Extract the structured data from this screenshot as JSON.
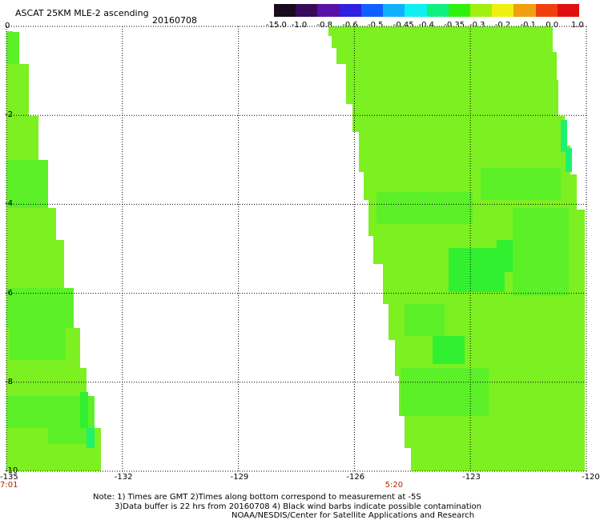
{
  "header": {
    "title": "ASCAT 25KM MLE-2 ascending",
    "date": "20160708"
  },
  "colorbar": {
    "labels": [
      "-15.0",
      "-1.0",
      "-0.8",
      "-0.6",
      "-0.5",
      "-0.45",
      "-0.4",
      "-0.35",
      "-0.3",
      "-0.2",
      "-0.1",
      "0.0",
      "1.0"
    ],
    "colors": [
      "#1a0a1e",
      "#3a0a5a",
      "#5a10a8",
      "#3020e0",
      "#1060ff",
      "#10b0ff",
      "#10f0f0",
      "#10f080",
      "#30f010",
      "#a0f010",
      "#f0f010",
      "#f0a010",
      "#f04010",
      "#e01010"
    ]
  },
  "axes": {
    "y_ticks": [
      "0",
      "-2",
      "-4",
      "-6",
      "-8",
      "-10"
    ],
    "x_ticks": [
      "-135",
      "-132",
      "-129",
      "-126",
      "-123",
      "-120"
    ],
    "time_labels": [
      {
        "text": "7:01",
        "lon": -135
      },
      {
        "text": "5:20",
        "lon": -125
      }
    ],
    "lon_range": [
      -135,
      -120
    ],
    "lat_range": [
      0,
      -10
    ]
  },
  "swaths": {
    "colors": {
      "base": "#7cf020",
      "mid": "#5cf028",
      "dark": "#30f030",
      "cyanish": "#20f070"
    }
  },
  "notes": {
    "line1": "Note: 1) Times are GMT 2)Times along bottom correspond to measurement at -5S",
    "line2": "3)Data buffer is 22 hrs from 20160708 4) Black wind barbs indicate possible contamination",
    "line3": "NOAA/NESDIS/Center for Satellite Applications and Research"
  }
}
